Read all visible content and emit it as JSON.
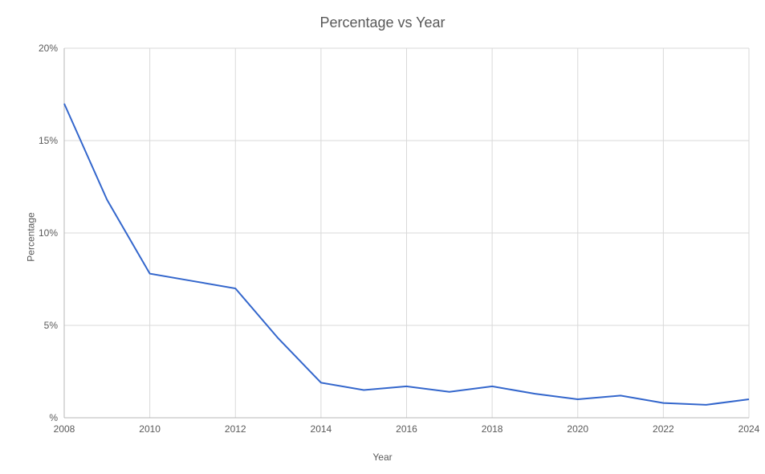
{
  "chart": {
    "type": "line",
    "title": "Percentage vs Year",
    "title_fontsize": 18,
    "title_color": "#595959",
    "xlabel": "Year",
    "ylabel": "Percentage",
    "label_fontsize": 12,
    "label_color": "#595959",
    "background_color": "#ffffff",
    "grid_color": "#d9d9d9",
    "axis_color": "#b7b7b7",
    "line_color": "#3366cc",
    "line_width": 2,
    "xlim": [
      2008,
      2024
    ],
    "ylim": [
      0,
      20
    ],
    "xtick_step": 2,
    "ytick_step": 5,
    "xticks": [
      2008,
      2010,
      2012,
      2014,
      2016,
      2018,
      2020,
      2022,
      2024
    ],
    "yticks": [
      0,
      5,
      10,
      15,
      20
    ],
    "ytick_labels": [
      "%",
      "5%",
      "10%",
      "15%",
      "20%"
    ],
    "xtick_labels": [
      "2008",
      "2010",
      "2012",
      "2014",
      "2016",
      "2018",
      "2020",
      "2022",
      "2024"
    ],
    "tick_fontsize": 12,
    "tick_color": "#595959",
    "data": {
      "x": [
        2008,
        2009,
        2010,
        2011,
        2012,
        2013,
        2014,
        2015,
        2016,
        2017,
        2018,
        2019,
        2020,
        2021,
        2022,
        2023,
        2024
      ],
      "y": [
        17.0,
        11.8,
        7.8,
        7.4,
        7.0,
        4.3,
        1.9,
        1.5,
        1.7,
        1.4,
        1.7,
        1.3,
        1.0,
        1.2,
        0.8,
        0.7,
        1.0
      ]
    }
  }
}
